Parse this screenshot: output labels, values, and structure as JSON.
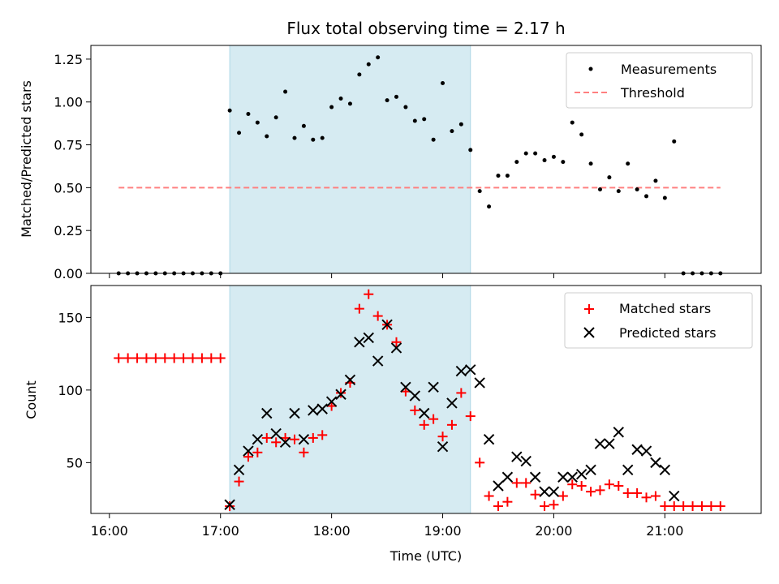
{
  "title": "Flux total observing time = 2.17 h",
  "colors": {
    "shade": "#add8e6",
    "measurement": "#000000",
    "threshold": "#ff7f7f",
    "matched": "#ff0000",
    "predicted": "#000000"
  },
  "chart_data": [
    {
      "type": "scatter",
      "panel": "top",
      "ylabel": "Matched/Predicted stars",
      "xlabel": "",
      "ylim": [
        0,
        1.33
      ],
      "yticks": [
        "0.00",
        "0.25",
        "0.50",
        "0.75",
        "1.00",
        "1.25"
      ],
      "ytick_values": [
        0,
        0.25,
        0.5,
        0.75,
        1.0,
        1.25
      ],
      "legend": {
        "placement": "top-right",
        "entries": [
          "Measurements",
          "Threshold"
        ]
      },
      "threshold": {
        "name": "Threshold",
        "y": 0.5,
        "x_start": "16:05",
        "x_end": "21:30"
      },
      "series": [
        {
          "name": "Measurements",
          "x": [
            "16:05",
            "16:10",
            "16:15",
            "16:20",
            "16:25",
            "16:30",
            "16:35",
            "16:40",
            "16:45",
            "16:50",
            "16:55",
            "17:00",
            "17:05",
            "17:10",
            "17:15",
            "17:20",
            "17:25",
            "17:30",
            "17:35",
            "17:40",
            "17:45",
            "17:50",
            "17:55",
            "18:00",
            "18:05",
            "18:10",
            "18:15",
            "18:20",
            "18:25",
            "18:30",
            "18:35",
            "18:40",
            "18:45",
            "18:50",
            "18:55",
            "19:00",
            "19:05",
            "19:10",
            "19:15",
            "19:20",
            "19:25",
            "19:30",
            "19:35",
            "19:40",
            "19:45",
            "19:50",
            "19:55",
            "20:00",
            "20:05",
            "20:10",
            "20:15",
            "20:20",
            "20:25",
            "20:30",
            "20:35",
            "20:40",
            "20:45",
            "20:50",
            "20:55",
            "21:00",
            "21:05",
            "21:10",
            "21:15",
            "21:20",
            "21:25",
            "21:30"
          ],
          "y": [
            0,
            0,
            0,
            0,
            0,
            0,
            0,
            0,
            0,
            0,
            0,
            0,
            0.95,
            0.82,
            0.93,
            0.88,
            0.8,
            0.91,
            1.06,
            0.79,
            0.86,
            0.78,
            0.79,
            0.97,
            1.02,
            0.99,
            1.16,
            1.22,
            1.26,
            1.01,
            1.03,
            0.97,
            0.89,
            0.9,
            0.78,
            1.11,
            0.83,
            0.87,
            0.72,
            0.48,
            0.39,
            0.57,
            0.57,
            0.65,
            0.7,
            0.7,
            0.66,
            0.68,
            0.65,
            0.88,
            0.81,
            0.64,
            0.49,
            0.56,
            0.48,
            0.64,
            0.49,
            0.45,
            0.54,
            0.44,
            0.77,
            0,
            0,
            0,
            0,
            0
          ]
        }
      ]
    },
    {
      "type": "scatter",
      "panel": "bottom",
      "ylabel": "Count",
      "xlabel": "Time (UTC)",
      "ylim": [
        15,
        172
      ],
      "yticks": [
        "50",
        "100",
        "150"
      ],
      "ytick_values": [
        50,
        100,
        150
      ],
      "xticks": [
        "16:00",
        "17:00",
        "18:00",
        "19:00",
        "20:00",
        "21:00"
      ],
      "xlim": [
        "15:50",
        "21:52"
      ],
      "shaded_interval": [
        "17:05",
        "19:15"
      ],
      "legend": {
        "placement": "top-right",
        "entries": [
          "Matched stars",
          "Predicted stars"
        ]
      },
      "series": [
        {
          "name": "Matched stars",
          "x": [
            "16:05",
            "16:10",
            "16:15",
            "16:20",
            "16:25",
            "16:30",
            "16:35",
            "16:40",
            "16:45",
            "16:50",
            "16:55",
            "17:00",
            "17:05",
            "17:10",
            "17:15",
            "17:20",
            "17:25",
            "17:30",
            "17:35",
            "17:40",
            "17:45",
            "17:50",
            "17:55",
            "18:00",
            "18:05",
            "18:10",
            "18:15",
            "18:20",
            "18:25",
            "18:30",
            "18:35",
            "18:40",
            "18:45",
            "18:50",
            "18:55",
            "19:00",
            "19:05",
            "19:10",
            "19:15",
            "19:20",
            "19:25",
            "19:30",
            "19:35",
            "19:40",
            "19:45",
            "19:50",
            "19:55",
            "20:00",
            "20:05",
            "20:10",
            "20:15",
            "20:20",
            "20:25",
            "20:30",
            "20:35",
            "20:40",
            "20:45",
            "20:50",
            "20:55",
            "21:00",
            "21:05",
            "21:10",
            "21:15",
            "21:20",
            "21:25",
            "21:30"
          ],
          "y": [
            122,
            122,
            122,
            122,
            122,
            122,
            122,
            122,
            122,
            122,
            122,
            122,
            20,
            37,
            54,
            57,
            67,
            64,
            67,
            66,
            57,
            67,
            69,
            89,
            98,
            105,
            156,
            166,
            151,
            145,
            133,
            99,
            86,
            76,
            80,
            68,
            76,
            98,
            82,
            50,
            27,
            20,
            23,
            36,
            36,
            28,
            20,
            21,
            27,
            35,
            34,
            30,
            31,
            35,
            34,
            29,
            29,
            26,
            27,
            20,
            20,
            20,
            20,
            20,
            20,
            20
          ]
        },
        {
          "name": "Predicted stars",
          "x": [
            "17:05",
            "17:10",
            "17:15",
            "17:20",
            "17:25",
            "17:30",
            "17:35",
            "17:40",
            "17:45",
            "17:50",
            "17:55",
            "18:00",
            "18:05",
            "18:10",
            "18:15",
            "18:20",
            "18:25",
            "18:30",
            "18:35",
            "18:40",
            "18:45",
            "18:50",
            "18:55",
            "19:00",
            "19:05",
            "19:10",
            "19:15",
            "19:20",
            "19:25",
            "19:30",
            "19:35",
            "19:40",
            "19:45",
            "19:50",
            "19:55",
            "20:00",
            "20:05",
            "20:10",
            "20:15",
            "20:20",
            "20:25",
            "20:30",
            "20:35",
            "20:40",
            "20:45",
            "20:50",
            "20:55",
            "21:00",
            "21:05"
          ],
          "y": [
            21,
            45,
            58,
            66,
            84,
            70,
            64,
            84,
            66,
            86,
            87,
            92,
            97,
            107,
            133,
            136,
            120,
            145,
            129,
            102,
            96,
            84,
            102,
            61,
            91,
            113,
            114,
            105,
            66,
            34,
            40,
            54,
            51,
            40,
            30,
            30,
            40,
            40,
            42,
            45,
            63,
            63,
            71,
            45,
            59,
            58,
            50,
            45,
            27
          ]
        }
      ]
    }
  ]
}
